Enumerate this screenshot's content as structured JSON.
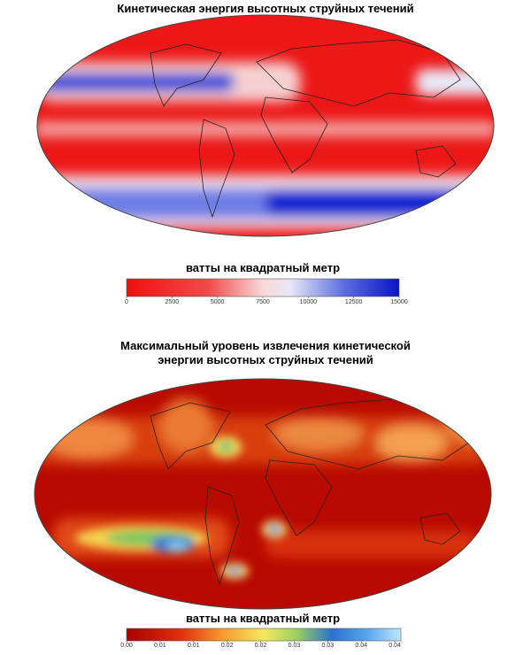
{
  "panels": [
    {
      "title": [
        "Кинетическая энергия высотных струйных течений"
      ],
      "colorbar": {
        "label": "ватты на квадратный метр",
        "lim": [
          0,
          15000
        ],
        "ticks": [
          0,
          2500,
          5000,
          7500,
          10000,
          12500,
          15000
        ]
      }
    },
    {
      "title": [
        "Максимальный уровень извлечения кинетической",
        "энергии высотных струйных течений"
      ],
      "colorbar": {
        "label": "ватты на квадратный метр",
        "lim": [
          0,
          0.045
        ],
        "ticks": [
          {
            "value": 0,
            "label": "0.00"
          },
          {
            "value": 0.0055,
            "label": "0.01"
          },
          {
            "value": 0.011,
            "label": "0.01"
          },
          {
            "value": 0.0165,
            "label": "0.02"
          },
          {
            "value": 0.022,
            "label": "0.02"
          },
          {
            "value": 0.0275,
            "label": "0.03"
          },
          {
            "value": 0.033,
            "label": "0.03"
          },
          {
            "value": 0.0385,
            "label": "0.04"
          },
          {
            "value": 0.044,
            "label": "0.04"
          }
        ]
      }
    }
  ]
}
